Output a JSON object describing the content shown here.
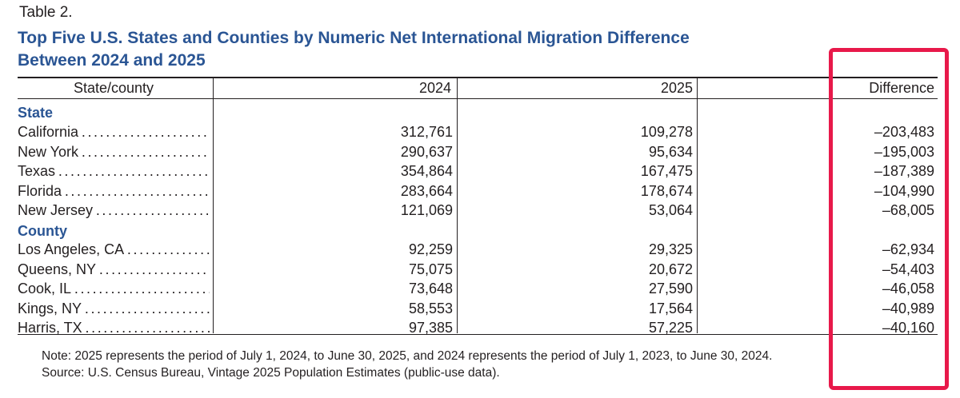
{
  "table_label": "Table 2.",
  "title_line1": "Top Five U.S. States and Counties by Numeric Net International Migration Difference",
  "title_line2": "Between 2024 and 2025",
  "headers": {
    "col1": "State/county",
    "col2": "2024",
    "col3": "2025",
    "col4": "Difference"
  },
  "sections": [
    {
      "label": "State",
      "rows": [
        {
          "name": "California",
          "y2024": "312,761",
          "y2025": "109,278",
          "diff": "–203,483"
        },
        {
          "name": "New York",
          "y2024": "290,637",
          "y2025": "95,634",
          "diff": "–195,003"
        },
        {
          "name": "Texas",
          "y2024": "354,864",
          "y2025": "167,475",
          "diff": "–187,389"
        },
        {
          "name": "Florida",
          "y2024": "283,664",
          "y2025": "178,674",
          "diff": "–104,990"
        },
        {
          "name": "New Jersey",
          "y2024": "121,069",
          "y2025": "53,064",
          "diff": "–68,005"
        }
      ]
    },
    {
      "label": "County",
      "rows": [
        {
          "name": "Los Angeles, CA",
          "y2024": "92,259",
          "y2025": "29,325",
          "diff": "–62,934"
        },
        {
          "name": "Queens, NY",
          "y2024": "75,075",
          "y2025": "20,672",
          "diff": "–54,403"
        },
        {
          "name": "Cook, IL",
          "y2024": "73,648",
          "y2025": "27,590",
          "diff": "–46,058"
        },
        {
          "name": "Kings, NY",
          "y2024": "58,553",
          "y2025": "17,564",
          "diff": "–40,989"
        },
        {
          "name": "Harris, TX",
          "y2024": "97,385",
          "y2025": "57,225",
          "diff": "–40,160"
        }
      ]
    }
  ],
  "note": "Note: 2025 represents the period of July 1, 2024, to June 30, 2025, and 2024 represents the period of July 1, 2023, to June 30, 2024.",
  "source": "Source: U.S. Census Bureau, Vintage 2025 Population Estimates (public-use data).",
  "colors": {
    "title": "#2a5594",
    "text": "#231f20",
    "highlight_box": "#e8194a"
  }
}
